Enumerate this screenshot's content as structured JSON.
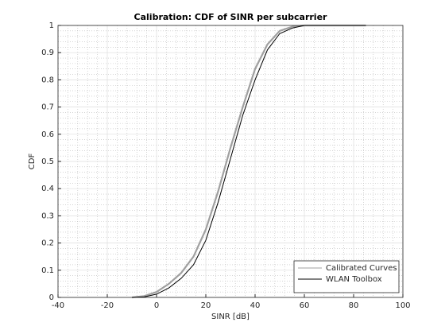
{
  "chart_data": {
    "type": "line",
    "title": "Calibration: CDF of SINR per subcarrier",
    "x_label": "SINR [dB]",
    "y_label": "CDF",
    "x": [
      -10,
      -5,
      0,
      5,
      10,
      15,
      20,
      25,
      30,
      35,
      40,
      45,
      50,
      55,
      60,
      70,
      85
    ],
    "series": [
      {
        "name": "Calibrated Curves",
        "color": "#a0a0a0",
        "values": [
          0,
          0.005,
          0.02,
          0.05,
          0.09,
          0.15,
          0.25,
          0.39,
          0.55,
          0.7,
          0.84,
          0.93,
          0.98,
          0.995,
          1,
          1,
          1
        ]
      },
      {
        "name": "WLAN Toolbox",
        "color": "#000000",
        "values": [
          0,
          0.002,
          0.012,
          0.035,
          0.07,
          0.12,
          0.21,
          0.35,
          0.51,
          0.67,
          0.8,
          0.91,
          0.97,
          0.99,
          1,
          1,
          1
        ]
      }
    ],
    "xlim": [
      -40,
      100
    ],
    "xticks": [
      -40,
      -20,
      0,
      20,
      40,
      60,
      80,
      100
    ],
    "ylim": [
      0,
      1
    ],
    "yticks": [
      0,
      0.1,
      0.2,
      0.3,
      0.4,
      0.5,
      0.6,
      0.7,
      0.8,
      0.9,
      1
    ],
    "grid": true,
    "minor_grid": true,
    "legend_position": "southeast"
  }
}
